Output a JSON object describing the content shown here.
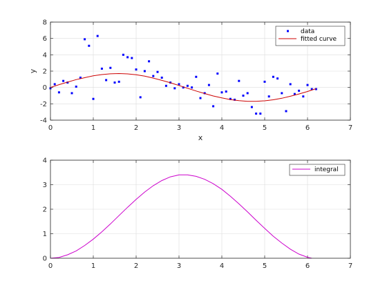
{
  "chart_data": [
    {
      "type": "scatter",
      "xlabel": "x",
      "ylabel": "y",
      "xlim": [
        0,
        7
      ],
      "ylim": [
        -4,
        8
      ],
      "xticks": [
        "0",
        "1",
        "2",
        "3",
        "4",
        "5",
        "6",
        "7"
      ],
      "yticks": [
        "-4",
        "-2",
        "0",
        "2",
        "4",
        "6",
        "8"
      ],
      "grid": true,
      "legend_position": "top-right",
      "series": [
        {
          "name": "data",
          "style": "points",
          "color": "#0000ff",
          "x": [
            0.0,
            0.1,
            0.2,
            0.3,
            0.4,
            0.5,
            0.6,
            0.7,
            0.8,
            0.9,
            1.0,
            1.1,
            1.2,
            1.3,
            1.4,
            1.5,
            1.6,
            1.7,
            1.8,
            1.9,
            2.0,
            2.1,
            2.2,
            2.3,
            2.4,
            2.5,
            2.6,
            2.7,
            2.8,
            2.9,
            3.0,
            3.1,
            3.2,
            3.3,
            3.4,
            3.5,
            3.6,
            3.7,
            3.8,
            3.9,
            4.0,
            4.1,
            4.2,
            4.3,
            4.4,
            4.5,
            4.6,
            4.7,
            4.8,
            4.9,
            5.0,
            5.1,
            5.2,
            5.3,
            5.4,
            5.5,
            5.6,
            5.7,
            5.8,
            5.9,
            6.0,
            6.1,
            6.2
          ],
          "y": [
            -0.1,
            0.4,
            -0.6,
            0.8,
            0.6,
            -0.7,
            0.1,
            1.2,
            5.9,
            5.1,
            -1.4,
            6.3,
            2.3,
            0.9,
            2.4,
            0.6,
            0.7,
            4.0,
            3.7,
            3.6,
            2.2,
            -1.2,
            2.0,
            3.2,
            1.4,
            1.9,
            1.2,
            0.2,
            0.6,
            -0.1,
            0.4,
            0.0,
            0.2,
            0.0,
            1.3,
            -1.3,
            -0.7,
            0.3,
            -2.3,
            1.7,
            -0.6,
            -0.5,
            -1.4,
            -1.5,
            0.8,
            -1.0,
            -0.7,
            -2.4,
            -3.2,
            -3.2,
            0.7,
            -1.1,
            1.3,
            1.1,
            -0.7,
            -2.9,
            0.4,
            -0.8,
            -0.4,
            -1.1,
            0.3,
            -0.2,
            -0.2
          ]
        },
        {
          "name": "fitted curve",
          "style": "line",
          "color": "#cc0000",
          "x": [
            0.0,
            0.2,
            0.4,
            0.6,
            0.8,
            1.0,
            1.2,
            1.4,
            1.6,
            1.8,
            2.0,
            2.2,
            2.4,
            2.6,
            2.8,
            3.0,
            3.2,
            3.4,
            3.6,
            3.8,
            4.0,
            4.2,
            4.4,
            4.6,
            4.8,
            5.0,
            5.2,
            5.4,
            5.6,
            5.8,
            6.0,
            6.2
          ],
          "y": [
            0.0,
            0.34,
            0.66,
            0.96,
            1.2,
            1.43,
            1.58,
            1.67,
            1.7,
            1.66,
            1.55,
            1.38,
            1.15,
            0.87,
            0.57,
            0.24,
            -0.1,
            -0.43,
            -0.75,
            -1.04,
            -1.28,
            -1.48,
            -1.62,
            -1.69,
            -1.69,
            -1.63,
            -1.51,
            -1.32,
            -1.08,
            -0.8,
            -0.49,
            -0.15
          ]
        }
      ]
    },
    {
      "type": "line",
      "xlabel": "",
      "ylabel": "",
      "xlim": [
        0,
        7
      ],
      "ylim": [
        0,
        4
      ],
      "xticks": [
        "0",
        "1",
        "2",
        "3",
        "4",
        "5",
        "6",
        "7"
      ],
      "yticks": [
        "0",
        "1",
        "2",
        "3",
        "4"
      ],
      "grid": true,
      "legend_position": "top-right",
      "series": [
        {
          "name": "integral",
          "style": "line",
          "color": "#cc00cc",
          "x": [
            0.0,
            0.2,
            0.4,
            0.6,
            0.8,
            1.0,
            1.2,
            1.4,
            1.6,
            1.8,
            2.0,
            2.2,
            2.4,
            2.6,
            2.8,
            3.0,
            3.2,
            3.4,
            3.6,
            3.8,
            4.0,
            4.2,
            4.4,
            4.6,
            4.8,
            5.0,
            5.2,
            5.4,
            5.6,
            5.8,
            6.0,
            6.1
          ],
          "y": [
            0.0,
            0.03,
            0.14,
            0.3,
            0.52,
            0.78,
            1.08,
            1.4,
            1.74,
            2.08,
            2.4,
            2.7,
            2.96,
            3.17,
            3.32,
            3.4,
            3.4,
            3.34,
            3.22,
            3.04,
            2.81,
            2.53,
            2.22,
            1.89,
            1.55,
            1.22,
            0.9,
            0.62,
            0.37,
            0.17,
            0.04,
            0.0
          ]
        }
      ]
    }
  ]
}
